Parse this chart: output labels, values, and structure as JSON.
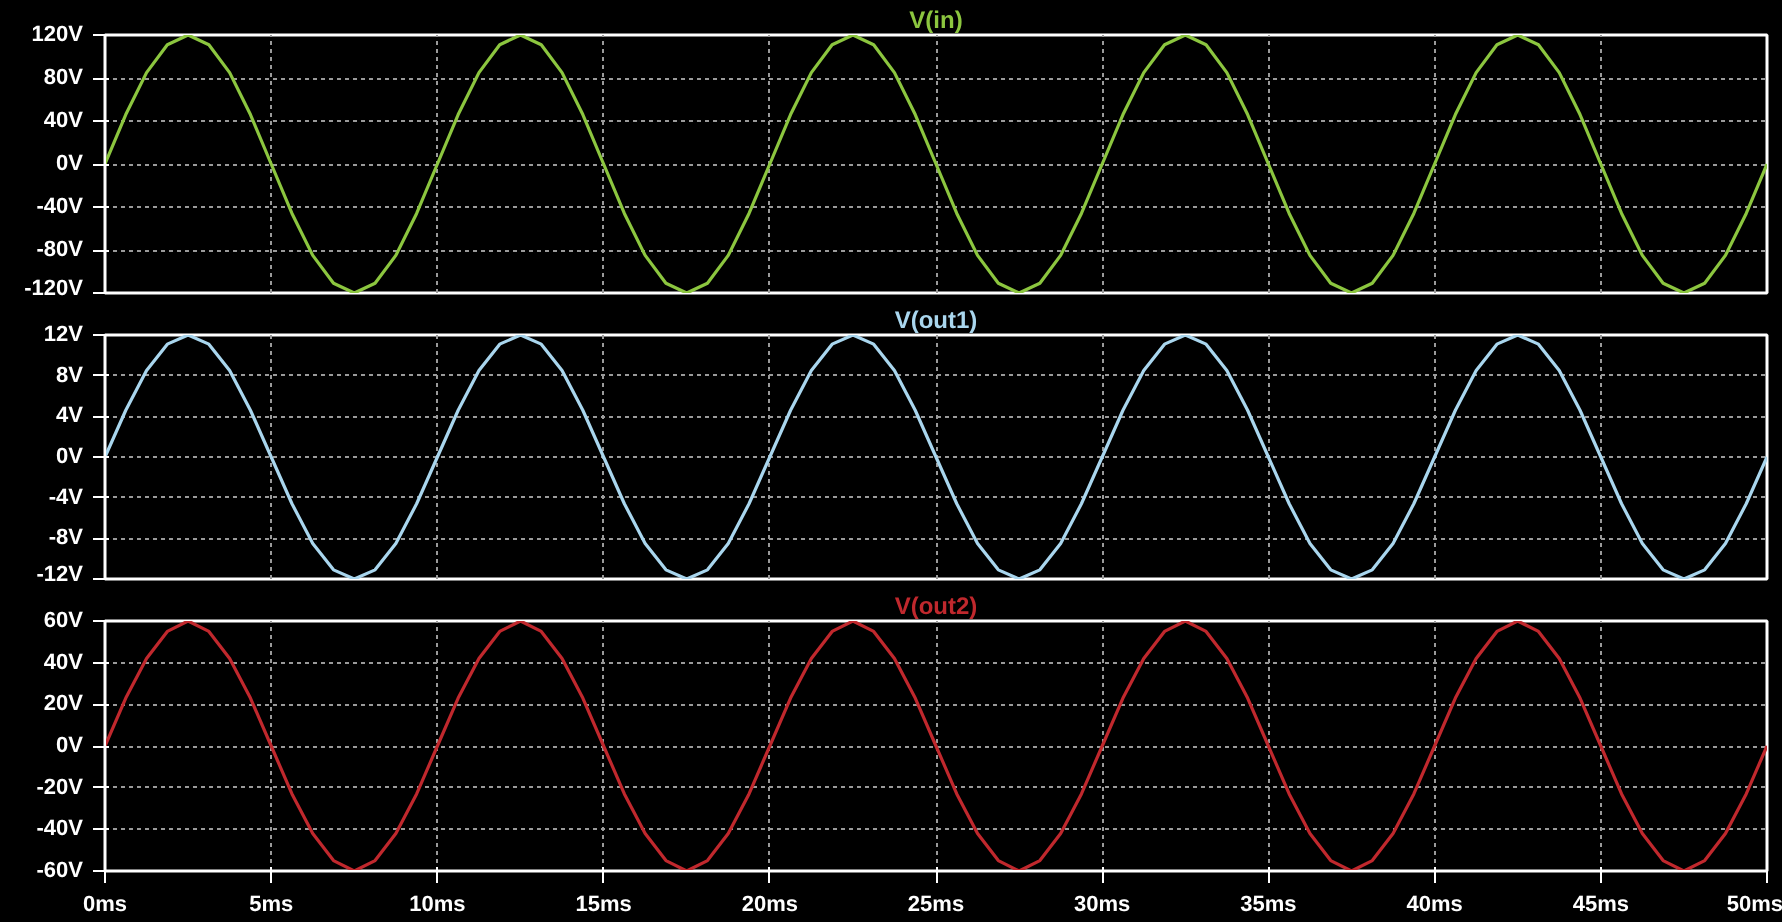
{
  "chart_data": [
    {
      "type": "line",
      "title": "V(in)",
      "xlim": [
        0,
        50
      ],
      "ylim": [
        -120,
        120
      ],
      "grid": true,
      "tick_labels": "y",
      "xticks": [
        {
          "value": 0,
          "label": null
        },
        {
          "value": 5,
          "label": null
        },
        {
          "value": 10,
          "label": null
        },
        {
          "value": 15,
          "label": null
        },
        {
          "value": 20,
          "label": null
        },
        {
          "value": 25,
          "label": null
        },
        {
          "value": 30,
          "label": null
        },
        {
          "value": 35,
          "label": null
        },
        {
          "value": 40,
          "label": null
        },
        {
          "value": 45,
          "label": null
        },
        {
          "value": 50,
          "label": null
        }
      ],
      "yticks": [
        {
          "value": 120,
          "label": "120V"
        },
        {
          "value": 80,
          "label": "80V"
        },
        {
          "value": 40,
          "label": "40V"
        },
        {
          "value": 0,
          "label": "0V"
        },
        {
          "value": -40,
          "label": "-40V"
        },
        {
          "value": -80,
          "label": "-80V"
        },
        {
          "value": -120,
          "label": "-120V"
        }
      ],
      "x": [
        0,
        0.625,
        1.25,
        1.875,
        2.5,
        3.125,
        3.75,
        4.375,
        5,
        5.625,
        6.25,
        6.875,
        7.5,
        8.125,
        8.75,
        9.375,
        10,
        10.625,
        11.25,
        11.875,
        12.5,
        13.125,
        13.75,
        14.375,
        15,
        15.625,
        16.25,
        16.875,
        17.5,
        18.125,
        18.75,
        19.375,
        20,
        20.625,
        21.25,
        21.875,
        22.5,
        23.125,
        23.75,
        24.375,
        25,
        25.625,
        26.25,
        26.875,
        27.5,
        28.125,
        28.75,
        29.375,
        30,
        30.625,
        31.25,
        31.875,
        32.5,
        33.125,
        33.75,
        34.375,
        35,
        35.625,
        36.25,
        36.875,
        37.5,
        38.125,
        38.75,
        39.375,
        40,
        40.625,
        41.25,
        41.875,
        42.5,
        43.125,
        43.75,
        44.375,
        45,
        45.625,
        46.25,
        46.875,
        47.5,
        48.125,
        48.75,
        49.375,
        50
      ],
      "series": [
        {
          "color": "#8cc63f",
          "values": [
            0,
            46,
            85,
            111,
            120,
            111,
            85,
            46,
            0,
            -46,
            -85,
            -111,
            -120,
            -111,
            -85,
            -46,
            0,
            46,
            85,
            111,
            120,
            111,
            85,
            46,
            0,
            -46,
            -85,
            -111,
            -120,
            -111,
            -85,
            -46,
            0,
            46,
            85,
            111,
            120,
            111,
            85,
            46,
            0,
            -46,
            -85,
            -111,
            -120,
            -111,
            -85,
            -46,
            0,
            46,
            85,
            111,
            120,
            111,
            85,
            46,
            0,
            -46,
            -85,
            -111,
            -120,
            -111,
            -85,
            -46,
            0,
            46,
            85,
            111,
            120,
            111,
            85,
            46,
            0,
            -46,
            -85,
            -111,
            -120,
            -111,
            -85,
            -46,
            0
          ]
        }
      ]
    },
    {
      "type": "line",
      "title": "V(out1)",
      "xlim": [
        0,
        50
      ],
      "ylim": [
        -12,
        12
      ],
      "grid": true,
      "tick_labels": "y",
      "xticks": [
        {
          "value": 0,
          "label": null
        },
        {
          "value": 5,
          "label": null
        },
        {
          "value": 10,
          "label": null
        },
        {
          "value": 15,
          "label": null
        },
        {
          "value": 20,
          "label": null
        },
        {
          "value": 25,
          "label": null
        },
        {
          "value": 30,
          "label": null
        },
        {
          "value": 35,
          "label": null
        },
        {
          "value": 40,
          "label": null
        },
        {
          "value": 45,
          "label": null
        },
        {
          "value": 50,
          "label": null
        }
      ],
      "yticks": [
        {
          "value": 12,
          "label": "12V"
        },
        {
          "value": 8,
          "label": "8V"
        },
        {
          "value": 4,
          "label": "4V"
        },
        {
          "value": 0,
          "label": "0V"
        },
        {
          "value": -4,
          "label": "-4V"
        },
        {
          "value": -8,
          "label": "-8V"
        },
        {
          "value": -12,
          "label": "-12V"
        }
      ],
      "x": [
        0,
        0.625,
        1.25,
        1.875,
        2.5,
        3.125,
        3.75,
        4.375,
        5,
        5.625,
        6.25,
        6.875,
        7.5,
        8.125,
        8.75,
        9.375,
        10,
        10.625,
        11.25,
        11.875,
        12.5,
        13.125,
        13.75,
        14.375,
        15,
        15.625,
        16.25,
        16.875,
        17.5,
        18.125,
        18.75,
        19.375,
        20,
        20.625,
        21.25,
        21.875,
        22.5,
        23.125,
        23.75,
        24.375,
        25,
        25.625,
        26.25,
        26.875,
        27.5,
        28.125,
        28.75,
        29.375,
        30,
        30.625,
        31.25,
        31.875,
        32.5,
        33.125,
        33.75,
        34.375,
        35,
        35.625,
        36.25,
        36.875,
        37.5,
        38.125,
        38.75,
        39.375,
        40,
        40.625,
        41.25,
        41.875,
        42.5,
        43.125,
        43.75,
        44.375,
        45,
        45.625,
        46.25,
        46.875,
        47.5,
        48.125,
        48.75,
        49.375,
        50
      ],
      "series": [
        {
          "color": "#a9d6ee",
          "values": [
            0,
            4.6,
            8.5,
            11.1,
            12,
            11.1,
            8.5,
            4.6,
            0,
            -4.6,
            -8.5,
            -11.1,
            -12,
            -11.1,
            -8.5,
            -4.6,
            0,
            4.6,
            8.5,
            11.1,
            12,
            11.1,
            8.5,
            4.6,
            0,
            -4.6,
            -8.5,
            -11.1,
            -12,
            -11.1,
            -8.5,
            -4.6,
            0,
            4.6,
            8.5,
            11.1,
            12,
            11.1,
            8.5,
            4.6,
            0,
            -4.6,
            -8.5,
            -11.1,
            -12,
            -11.1,
            -8.5,
            -4.6,
            0,
            4.6,
            8.5,
            11.1,
            12,
            11.1,
            8.5,
            4.6,
            0,
            -4.6,
            -8.5,
            -11.1,
            -12,
            -11.1,
            -8.5,
            -4.6,
            0,
            4.6,
            8.5,
            11.1,
            12,
            11.1,
            8.5,
            4.6,
            0,
            -4.6,
            -8.5,
            -11.1,
            -12,
            -11.1,
            -8.5,
            -4.6,
            0
          ]
        }
      ]
    },
    {
      "type": "line",
      "title": "V(out2)",
      "xlim": [
        0,
        50
      ],
      "ylim": [
        -60,
        60
      ],
      "grid": true,
      "xticks": [
        {
          "value": 0,
          "label": "0ms"
        },
        {
          "value": 5,
          "label": "5ms"
        },
        {
          "value": 10,
          "label": "10ms"
        },
        {
          "value": 15,
          "label": "15ms"
        },
        {
          "value": 20,
          "label": "20ms"
        },
        {
          "value": 25,
          "label": "25ms"
        },
        {
          "value": 30,
          "label": "30ms"
        },
        {
          "value": 35,
          "label": "35ms"
        },
        {
          "value": 40,
          "label": "40ms"
        },
        {
          "value": 45,
          "label": "45ms"
        },
        {
          "value": 50,
          "label": "50ms"
        }
      ],
      "yticks": [
        {
          "value": 60,
          "label": "60V"
        },
        {
          "value": 40,
          "label": "40V"
        },
        {
          "value": 20,
          "label": "20V"
        },
        {
          "value": 0,
          "label": "0V"
        },
        {
          "value": -20,
          "label": "-20V"
        },
        {
          "value": -40,
          "label": "-40V"
        },
        {
          "value": -60,
          "label": "-60V"
        }
      ],
      "x": [
        0,
        0.625,
        1.25,
        1.875,
        2.5,
        3.125,
        3.75,
        4.375,
        5,
        5.625,
        6.25,
        6.875,
        7.5,
        8.125,
        8.75,
        9.375,
        10,
        10.625,
        11.25,
        11.875,
        12.5,
        13.125,
        13.75,
        14.375,
        15,
        15.625,
        16.25,
        16.875,
        17.5,
        18.125,
        18.75,
        19.375,
        20,
        20.625,
        21.25,
        21.875,
        22.5,
        23.125,
        23.75,
        24.375,
        25,
        25.625,
        26.25,
        26.875,
        27.5,
        28.125,
        28.75,
        29.375,
        30,
        30.625,
        31.25,
        31.875,
        32.5,
        33.125,
        33.75,
        34.375,
        35,
        35.625,
        36.25,
        36.875,
        37.5,
        38.125,
        38.75,
        39.375,
        40,
        40.625,
        41.25,
        41.875,
        42.5,
        43.125,
        43.75,
        44.375,
        45,
        45.625,
        46.25,
        46.875,
        47.5,
        48.125,
        48.75,
        49.375,
        50
      ],
      "series": [
        {
          "color": "#c0282d",
          "values": [
            0,
            23,
            42,
            55,
            60,
            55,
            42,
            23,
            0,
            -23,
            -42,
            -55,
            -60,
            -55,
            -42,
            -23,
            0,
            23,
            42,
            55,
            60,
            55,
            42,
            23,
            0,
            -23,
            -42,
            -55,
            -60,
            -55,
            -42,
            -23,
            0,
            23,
            42,
            55,
            60,
            55,
            42,
            23,
            0,
            -23,
            -42,
            -55,
            -60,
            -55,
            -42,
            -23,
            0,
            23,
            42,
            55,
            60,
            55,
            42,
            23,
            0,
            -23,
            -42,
            -55,
            -60,
            -55,
            -42,
            -23,
            0,
            23,
            42,
            55,
            60,
            55,
            42,
            23,
            0,
            -23,
            -42,
            -55,
            -60,
            -55,
            -42,
            -23,
            0
          ]
        }
      ]
    }
  ]
}
